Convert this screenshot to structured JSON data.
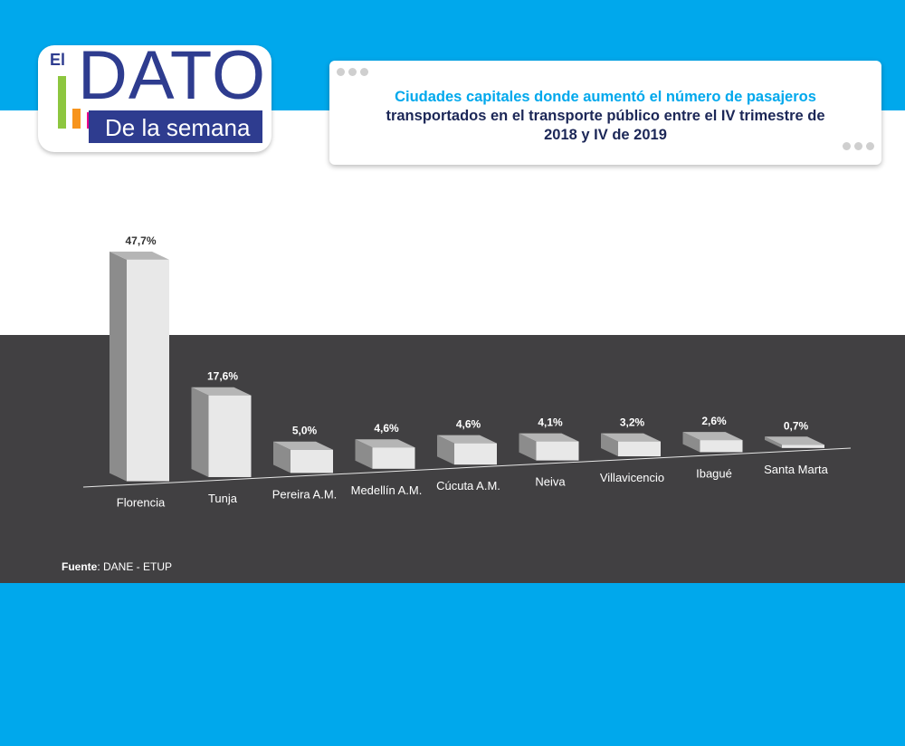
{
  "logo": {
    "el": "El",
    "dato": "DATO",
    "subtitle": "De la semana",
    "bar_colors": [
      "#8dc63f",
      "#f7941d",
      "#ec008c"
    ]
  },
  "title": {
    "line1": "Ciudades capitales donde aumentó el número de pasajeros",
    "line2": "transportados en el transporte público entre el IV trimestre de",
    "line3": "2018 y IV de 2019"
  },
  "source": {
    "label": "Fuente",
    "text": ": DANE - ETUP"
  },
  "colors": {
    "top_band": "#00a8ec",
    "dark_band": "#414042",
    "brand_blue": "#2e3c8f",
    "title_highlight": "#00a8ec"
  },
  "chart_data": {
    "type": "bar",
    "categories": [
      "Florencia",
      "Tunja",
      "Pereira A.M.",
      "Medellín A.M.",
      "Cúcuta A.M.",
      "Neiva",
      "Villavicencio",
      "Ibagué",
      "Santa Marta"
    ],
    "values": [
      47.7,
      17.6,
      5.0,
      4.6,
      4.6,
      4.1,
      3.2,
      2.6,
      0.7
    ],
    "value_labels": [
      "47,7%",
      "17,6%",
      "5,0%",
      "4,6%",
      "4,6%",
      "4,1%",
      "3,2%",
      "2,6%",
      "0,7%"
    ],
    "unit": "%",
    "style": "3d-bars",
    "grid": false,
    "legend": "none"
  }
}
